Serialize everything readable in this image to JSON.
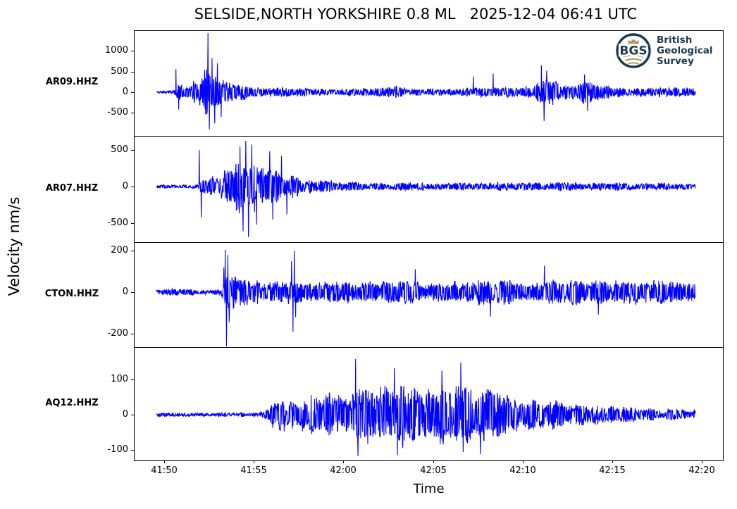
{
  "title": "SELSIDE,NORTH YORKSHIRE 0.8 ML   2025-12-04 06:41 UTC",
  "xlabel": "Time",
  "ylabel": "Velocity nm/s",
  "colors": {
    "trace": "#0000ff",
    "axis": "#000000",
    "logo_navy": "#1d3b4e",
    "logo_gold": "#b09a62"
  },
  "logo": {
    "abbr": "BGS",
    "lines": [
      "British",
      "Geological",
      "Survey"
    ]
  },
  "chart_data": {
    "type": "line",
    "title": "SELSIDE,NORTH YORKSHIRE 0.8 ML   2025-12-04 06:41 UTC",
    "xlabel": "Time",
    "ylabel": "Velocity nm/s",
    "x_ticks": [
      "41:50",
      "41:55",
      "42:00",
      "42:05",
      "42:10",
      "42:15",
      "42:20"
    ],
    "grid": false,
    "trace_color": "#0000ff",
    "panels": [
      {
        "station": "AR09.HHZ",
        "y_ticks": [
          1000,
          500,
          0,
          -500
        ],
        "ylim": [
          -1060,
          1500
        ],
        "seed": 11,
        "envelope": [
          [
            0,
            30
          ],
          [
            0.02,
            35
          ],
          [
            0.033,
            60
          ],
          [
            0.038,
            200
          ],
          [
            0.05,
            170
          ],
          [
            0.065,
            220
          ],
          [
            0.08,
            420
          ],
          [
            0.09,
            600
          ],
          [
            0.1,
            640
          ],
          [
            0.115,
            500
          ],
          [
            0.13,
            400
          ],
          [
            0.15,
            290
          ],
          [
            0.18,
            180
          ],
          [
            0.22,
            120
          ],
          [
            0.28,
            95
          ],
          [
            0.35,
            85
          ],
          [
            0.42,
            115
          ],
          [
            0.445,
            150
          ],
          [
            0.47,
            100
          ],
          [
            0.52,
            90
          ],
          [
            0.57,
            100
          ],
          [
            0.6,
            140
          ],
          [
            0.63,
            160
          ],
          [
            0.66,
            120
          ],
          [
            0.7,
            170
          ],
          [
            0.715,
            420
          ],
          [
            0.73,
            360
          ],
          [
            0.75,
            200
          ],
          [
            0.78,
            230
          ],
          [
            0.795,
            330
          ],
          [
            0.81,
            240
          ],
          [
            0.84,
            150
          ],
          [
            0.88,
            120
          ],
          [
            0.92,
            135
          ],
          [
            0.96,
            115
          ],
          [
            1,
            105
          ]
        ],
        "spikes": [
          [
            0.036,
            560
          ],
          [
            0.041,
            -420
          ],
          [
            0.0954,
            1430
          ],
          [
            0.098,
            -900
          ],
          [
            0.103,
            820
          ],
          [
            0.108,
            -760
          ],
          [
            0.113,
            700
          ],
          [
            0.12,
            -600
          ],
          [
            0.588,
            380
          ],
          [
            0.625,
            450
          ],
          [
            0.714,
            650
          ],
          [
            0.719,
            -700
          ],
          [
            0.724,
            520
          ],
          [
            0.794,
            430
          ],
          [
            0.8,
            -460
          ]
        ]
      },
      {
        "station": "AR07.HHZ",
        "y_ticks": [
          500,
          0,
          -500
        ],
        "ylim": [
          -760,
          692
        ],
        "seed": 23,
        "envelope": [
          [
            0,
            22
          ],
          [
            0.06,
            25
          ],
          [
            0.075,
            28
          ],
          [
            0.085,
            150
          ],
          [
            0.1,
            170
          ],
          [
            0.12,
            200
          ],
          [
            0.14,
            280
          ],
          [
            0.155,
            380
          ],
          [
            0.17,
            420
          ],
          [
            0.185,
            390
          ],
          [
            0.2,
            330
          ],
          [
            0.22,
            250
          ],
          [
            0.25,
            160
          ],
          [
            0.28,
            110
          ],
          [
            0.32,
            80
          ],
          [
            0.38,
            62
          ],
          [
            0.45,
            55
          ],
          [
            0.55,
            56
          ],
          [
            0.62,
            62
          ],
          [
            0.7,
            66
          ],
          [
            0.78,
            60
          ],
          [
            0.85,
            55
          ],
          [
            0.93,
            50
          ],
          [
            1,
            48
          ]
        ],
        "spikes": [
          [
            0.0797,
            500
          ],
          [
            0.083,
            -420
          ],
          [
            0.155,
            545
          ],
          [
            0.161,
            -610
          ],
          [
            0.166,
            625
          ],
          [
            0.171,
            -690
          ],
          [
            0.177,
            575
          ],
          [
            0.186,
            -520
          ],
          [
            0.21,
            480
          ],
          [
            0.216,
            -450
          ],
          [
            0.232,
            415
          ],
          [
            0.242,
            -380
          ]
        ]
      },
      {
        "station": "CTON.HHZ",
        "y_ticks": [
          200,
          0,
          -200
        ],
        "ylim": [
          -265,
          242
        ],
        "seed": 37,
        "envelope": [
          [
            0,
            16
          ],
          [
            0.022,
            22
          ],
          [
            0.035,
            30
          ],
          [
            0.048,
            18
          ],
          [
            0.08,
            13
          ],
          [
            0.12,
            13
          ],
          [
            0.132,
            90
          ],
          [
            0.15,
            78
          ],
          [
            0.18,
            60
          ],
          [
            0.21,
            55
          ],
          [
            0.245,
            68
          ],
          [
            0.27,
            55
          ],
          [
            0.32,
            50
          ],
          [
            0.38,
            56
          ],
          [
            0.45,
            60
          ],
          [
            0.52,
            55
          ],
          [
            0.6,
            62
          ],
          [
            0.68,
            66
          ],
          [
            0.75,
            60
          ],
          [
            0.82,
            66
          ],
          [
            0.9,
            60
          ],
          [
            1,
            56
          ]
        ],
        "spikes": [
          [
            0.125,
            120
          ],
          [
            0.1275,
            205
          ],
          [
            0.13,
            -268
          ],
          [
            0.1325,
            180
          ],
          [
            0.135,
            -145
          ],
          [
            0.251,
            150
          ],
          [
            0.2535,
            -190
          ],
          [
            0.256,
            200
          ],
          [
            0.2585,
            -120
          ],
          [
            0.48,
            112
          ],
          [
            0.62,
            -118
          ],
          [
            0.72,
            128
          ],
          [
            0.82,
            -108
          ]
        ]
      },
      {
        "station": "AQ12.HHZ",
        "y_ticks": [
          100,
          0,
          -100
        ],
        "ylim": [
          -130,
          192
        ],
        "seed": 5,
        "envelope": [
          [
            0,
            5
          ],
          [
            0.15,
            6
          ],
          [
            0.19,
            8
          ],
          [
            0.205,
            22
          ],
          [
            0.215,
            45
          ],
          [
            0.23,
            55
          ],
          [
            0.25,
            46
          ],
          [
            0.28,
            56
          ],
          [
            0.31,
            66
          ],
          [
            0.34,
            60
          ],
          [
            0.37,
            80
          ],
          [
            0.4,
            90
          ],
          [
            0.43,
            95
          ],
          [
            0.46,
            100
          ],
          [
            0.49,
            85
          ],
          [
            0.52,
            92
          ],
          [
            0.55,
            100
          ],
          [
            0.575,
            95
          ],
          [
            0.6,
            80
          ],
          [
            0.63,
            66
          ],
          [
            0.66,
            56
          ],
          [
            0.7,
            48
          ],
          [
            0.75,
            40
          ],
          [
            0.8,
            32
          ],
          [
            0.85,
            26
          ],
          [
            0.9,
            20
          ],
          [
            0.95,
            16
          ],
          [
            1,
            13
          ]
        ],
        "spikes": [
          [
            0.3699,
            158
          ],
          [
            0.374,
            -118
          ],
          [
            0.4418,
            132
          ],
          [
            0.447,
            -115
          ],
          [
            0.53,
            125
          ],
          [
            0.5647,
            148
          ],
          [
            0.569,
            -106
          ],
          [
            0.601,
            -112
          ]
        ]
      }
    ]
  }
}
